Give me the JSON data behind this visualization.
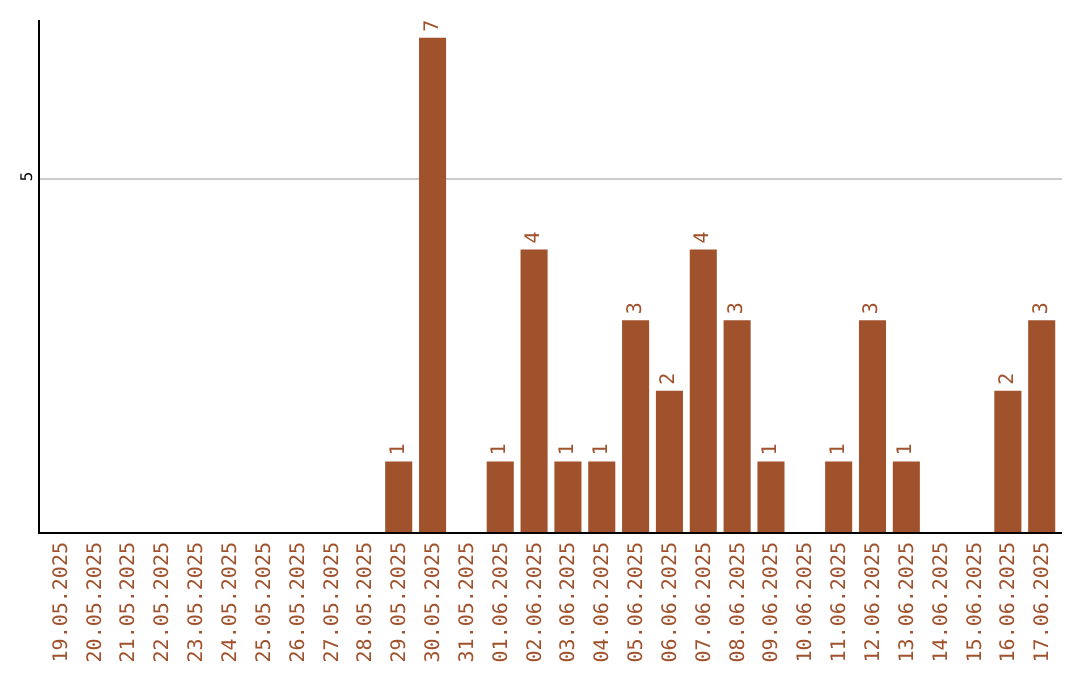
{
  "chart_data": {
    "type": "bar",
    "categories": [
      "19.05.2025",
      "20.05.2025",
      "21.05.2025",
      "22.05.2025",
      "23.05.2025",
      "24.05.2025",
      "25.05.2025",
      "26.05.2025",
      "27.05.2025",
      "28.05.2025",
      "29.05.2025",
      "30.05.2025",
      "31.05.2025",
      "01.06.2025",
      "02.06.2025",
      "03.06.2025",
      "04.06.2025",
      "05.06.2025",
      "06.06.2025",
      "07.06.2025",
      "08.06.2025",
      "09.06.2025",
      "10.06.2025",
      "11.06.2025",
      "12.06.2025",
      "13.06.2025",
      "14.06.2025",
      "15.06.2025",
      "16.06.2025",
      "17.06.2025"
    ],
    "values": [
      0,
      0,
      0,
      0,
      0,
      0,
      0,
      0,
      0,
      0,
      1,
      7,
      0,
      1,
      4,
      1,
      1,
      3,
      2,
      4,
      3,
      1,
      0,
      1,
      3,
      1,
      0,
      0,
      2,
      3
    ],
    "value_labels": [
      null,
      null,
      null,
      null,
      null,
      null,
      null,
      null,
      null,
      null,
      "1",
      "7",
      null,
      "1",
      "4",
      "1",
      "1",
      "3",
      "2",
      "4",
      "3",
      "1",
      null,
      "1",
      "3",
      "1",
      null,
      null,
      "2",
      "3"
    ],
    "color": "#a0522d",
    "ylim": [
      0,
      7.25
    ],
    "yticks": [
      5
    ],
    "grid": "y",
    "legend": false
  }
}
